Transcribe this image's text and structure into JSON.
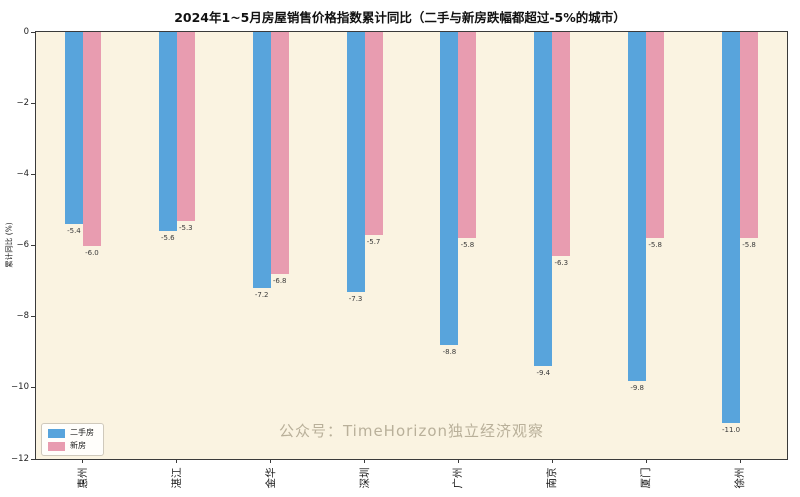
{
  "title": "2024年1~5月房屋销售价格指数累计同比（二手与新房跌幅都超过-5%的城市）",
  "watermark": "公众号：TimeHorizon独立经济观察",
  "chart_data": {
    "type": "bar",
    "title": "2024年1~5月房屋销售价格指数累计同比（二手与新房跌幅都超过-5%的城市）",
    "categories": [
      "惠州",
      "湛江",
      "金华",
      "深圳",
      "广州",
      "南京",
      "厦门",
      "徐州"
    ],
    "series": [
      {
        "name": "二手房",
        "color": "#58a4dc",
        "values": [
          -5.4,
          -5.6,
          -7.2,
          -7.3,
          -8.8,
          -9.4,
          -9.8,
          -11.0
        ]
      },
      {
        "name": "新房",
        "color": "#e89cb0",
        "values": [
          -6.0,
          -5.3,
          -6.8,
          -5.7,
          -5.8,
          -6.3,
          -5.8,
          -5.8
        ]
      }
    ],
    "xlabel": "",
    "ylabel": "累计同比 (%)",
    "ylim": [
      -12,
      0
    ],
    "yticks": [
      0,
      -2,
      -4,
      -6,
      -8,
      -10,
      -12
    ],
    "grid": false,
    "value_labels": true,
    "legend_position": "lower left",
    "plot_background": "#faf3e1",
    "figure_background": "#ffffff",
    "xtick_rotation": 90
  }
}
